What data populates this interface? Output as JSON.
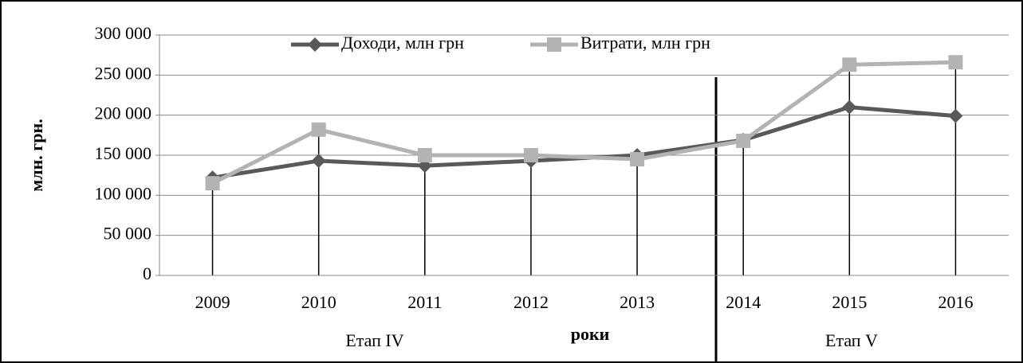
{
  "chart_data": {
    "type": "line",
    "categories": [
      "2009",
      "2010",
      "2011",
      "2012",
      "2013",
      "2014",
      "2015",
      "2016"
    ],
    "series": [
      {
        "name": "Доходи, млн грн",
        "color": "#595959",
        "marker": "diamond",
        "values": [
          122000,
          143000,
          137000,
          143000,
          150000,
          169000,
          210000,
          199000
        ]
      },
      {
        "name": "Витрати, млн грн",
        "color": "#b3b3b3",
        "marker": "square",
        "values": [
          115000,
          182000,
          150000,
          150000,
          145000,
          168000,
          263000,
          266000
        ]
      }
    ],
    "ylabel": "млн. грн.",
    "xlabel": "роки",
    "annotations": [
      "Етап IV",
      "Етап V"
    ],
    "ylim": [
      0,
      300000
    ],
    "yticks": [
      0,
      {
        "value": 50000,
        "label": "50 000"
      },
      {
        "value": 100000,
        "label": "100 000"
      },
      {
        "value": 150000,
        "label": "150 000"
      },
      {
        "value": 200000,
        "label": "200 000"
      },
      {
        "value": 250000,
        "label": "250 000"
      },
      {
        "value": 300000,
        "label": "300 000"
      }
    ],
    "grid": true,
    "legend": "top"
  }
}
